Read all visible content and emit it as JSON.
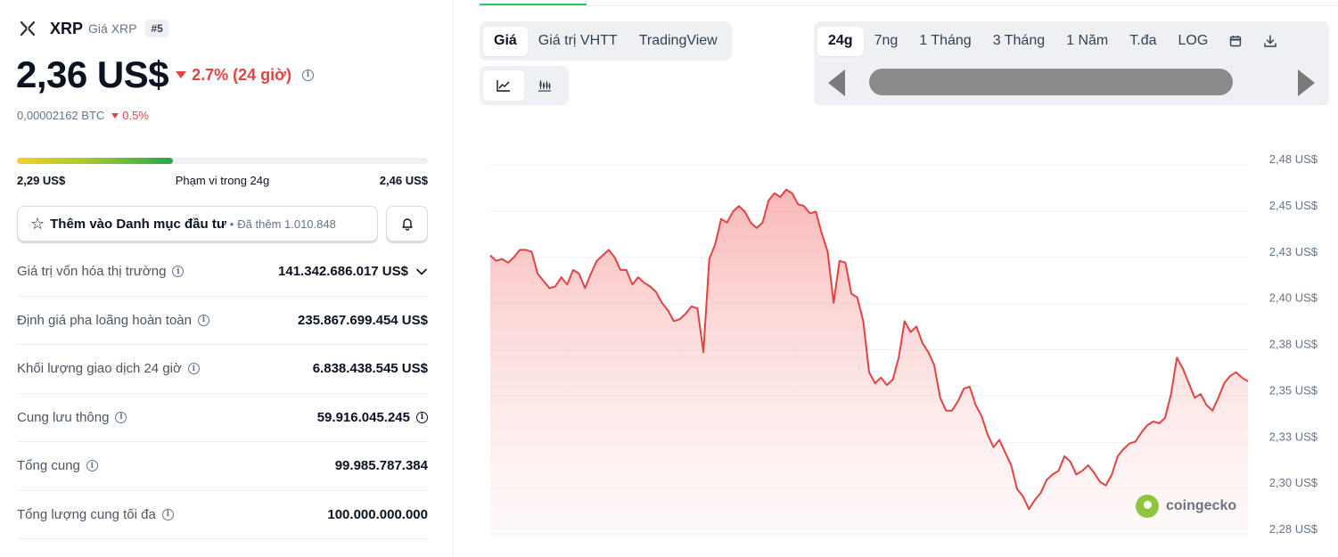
{
  "coin": {
    "symbol": "XRP",
    "name": "Giá XRP",
    "rank": "#5",
    "price": "2,36 US$",
    "change_24h": "2.7% (24 giờ)",
    "btc_price": "0,00002162 BTC",
    "btc_change": "0.5%",
    "down_color": "#e34242"
  },
  "range": {
    "low": "2,29 US$",
    "label": "Phạm vi trong 24g",
    "high": "2,46 US$",
    "fill_fraction": 0.38
  },
  "watchlist": {
    "label": "Thêm vào Danh mục đầu tư",
    "added": "Đã thêm 1.010.848"
  },
  "stats": [
    {
      "label": "Giá trị vốn hóa thị trường",
      "value": "141.342.686.017 US$"
    },
    {
      "label": "Định giá pha loãng hoàn toàn",
      "value": "235.867.699.454 US$"
    },
    {
      "label": "Khối lượng giao dịch 24 giờ",
      "value": "6.838.438.545 US$"
    },
    {
      "label": "Cung lưu thông",
      "value": "59.916.045.245"
    },
    {
      "label": "Tổng cung",
      "value": "99.985.787.384"
    },
    {
      "label": "Tổng lượng cung tối đa",
      "value": "100.000.000.000"
    }
  ],
  "chart_tabs": [
    "Giá",
    "Giá trị VHTT",
    "TradingView"
  ],
  "chart_tab_active": 0,
  "timeframes": [
    "24g",
    "7ng",
    "1 Tháng",
    "3 Tháng",
    "1 Năm",
    "T.đa",
    "LOG"
  ],
  "timeframe_active": 0,
  "icons": {
    "close": "x-logo-icon",
    "calendar": "calendar-icon",
    "download": "download-icon",
    "line": "line-chart-icon",
    "candle": "candlestick-icon",
    "bell": "bell-icon",
    "star": "star-icon"
  },
  "watermark": "coingecko",
  "chart_data": {
    "type": "area",
    "title": "",
    "xlabel": "",
    "ylabel": "",
    "yticks": [
      "2,48 US$",
      "2,45 US$",
      "2,43 US$",
      "2,40 US$",
      "2,38 US$",
      "2,35 US$",
      "2,33 US$",
      "2,30 US$",
      "2,28 US$"
    ],
    "ylim": [
      2.275,
      2.48
    ],
    "grid": true,
    "line_color": "#e34242",
    "values": [
      2.428,
      2.425,
      2.426,
      2.424,
      2.427,
      2.431,
      2.431,
      2.43,
      2.418,
      2.414,
      2.41,
      2.411,
      2.416,
      2.412,
      2.42,
      2.418,
      2.41,
      2.418,
      2.425,
      2.428,
      2.431,
      2.427,
      2.42,
      2.42,
      2.412,
      2.416,
      2.413,
      2.411,
      2.408,
      2.402,
      2.398,
      2.392,
      2.393,
      2.396,
      2.4,
      2.399,
      2.375,
      2.426,
      2.434,
      2.448,
      2.446,
      2.452,
      2.455,
      2.452,
      2.446,
      2.443,
      2.446,
      2.458,
      2.462,
      2.46,
      2.464,
      2.462,
      2.456,
      2.455,
      2.451,
      2.452,
      2.44,
      2.43,
      2.402,
      2.425,
      2.424,
      2.407,
      2.405,
      2.392,
      2.364,
      2.358,
      2.361,
      2.357,
      2.36,
      2.372,
      2.392,
      2.386,
      2.389,
      2.38,
      2.375,
      2.368,
      2.35,
      2.343,
      2.343,
      2.348,
      2.355,
      2.356,
      2.346,
      2.34,
      2.33,
      2.323,
      2.327,
      2.32,
      2.313,
      2.3,
      2.296,
      2.289,
      2.294,
      2.298,
      2.305,
      2.308,
      2.31,
      2.318,
      2.315,
      2.308,
      2.31,
      2.313,
      2.309,
      2.304,
      2.302,
      2.308,
      2.318,
      2.322,
      2.325,
      2.326,
      2.331,
      2.335,
      2.337,
      2.336,
      2.339,
      2.352,
      2.372,
      2.366,
      2.358,
      2.35,
      2.352,
      2.346,
      2.343,
      2.35,
      2.358,
      2.362,
      2.364,
      2.361,
      2.359
    ]
  }
}
